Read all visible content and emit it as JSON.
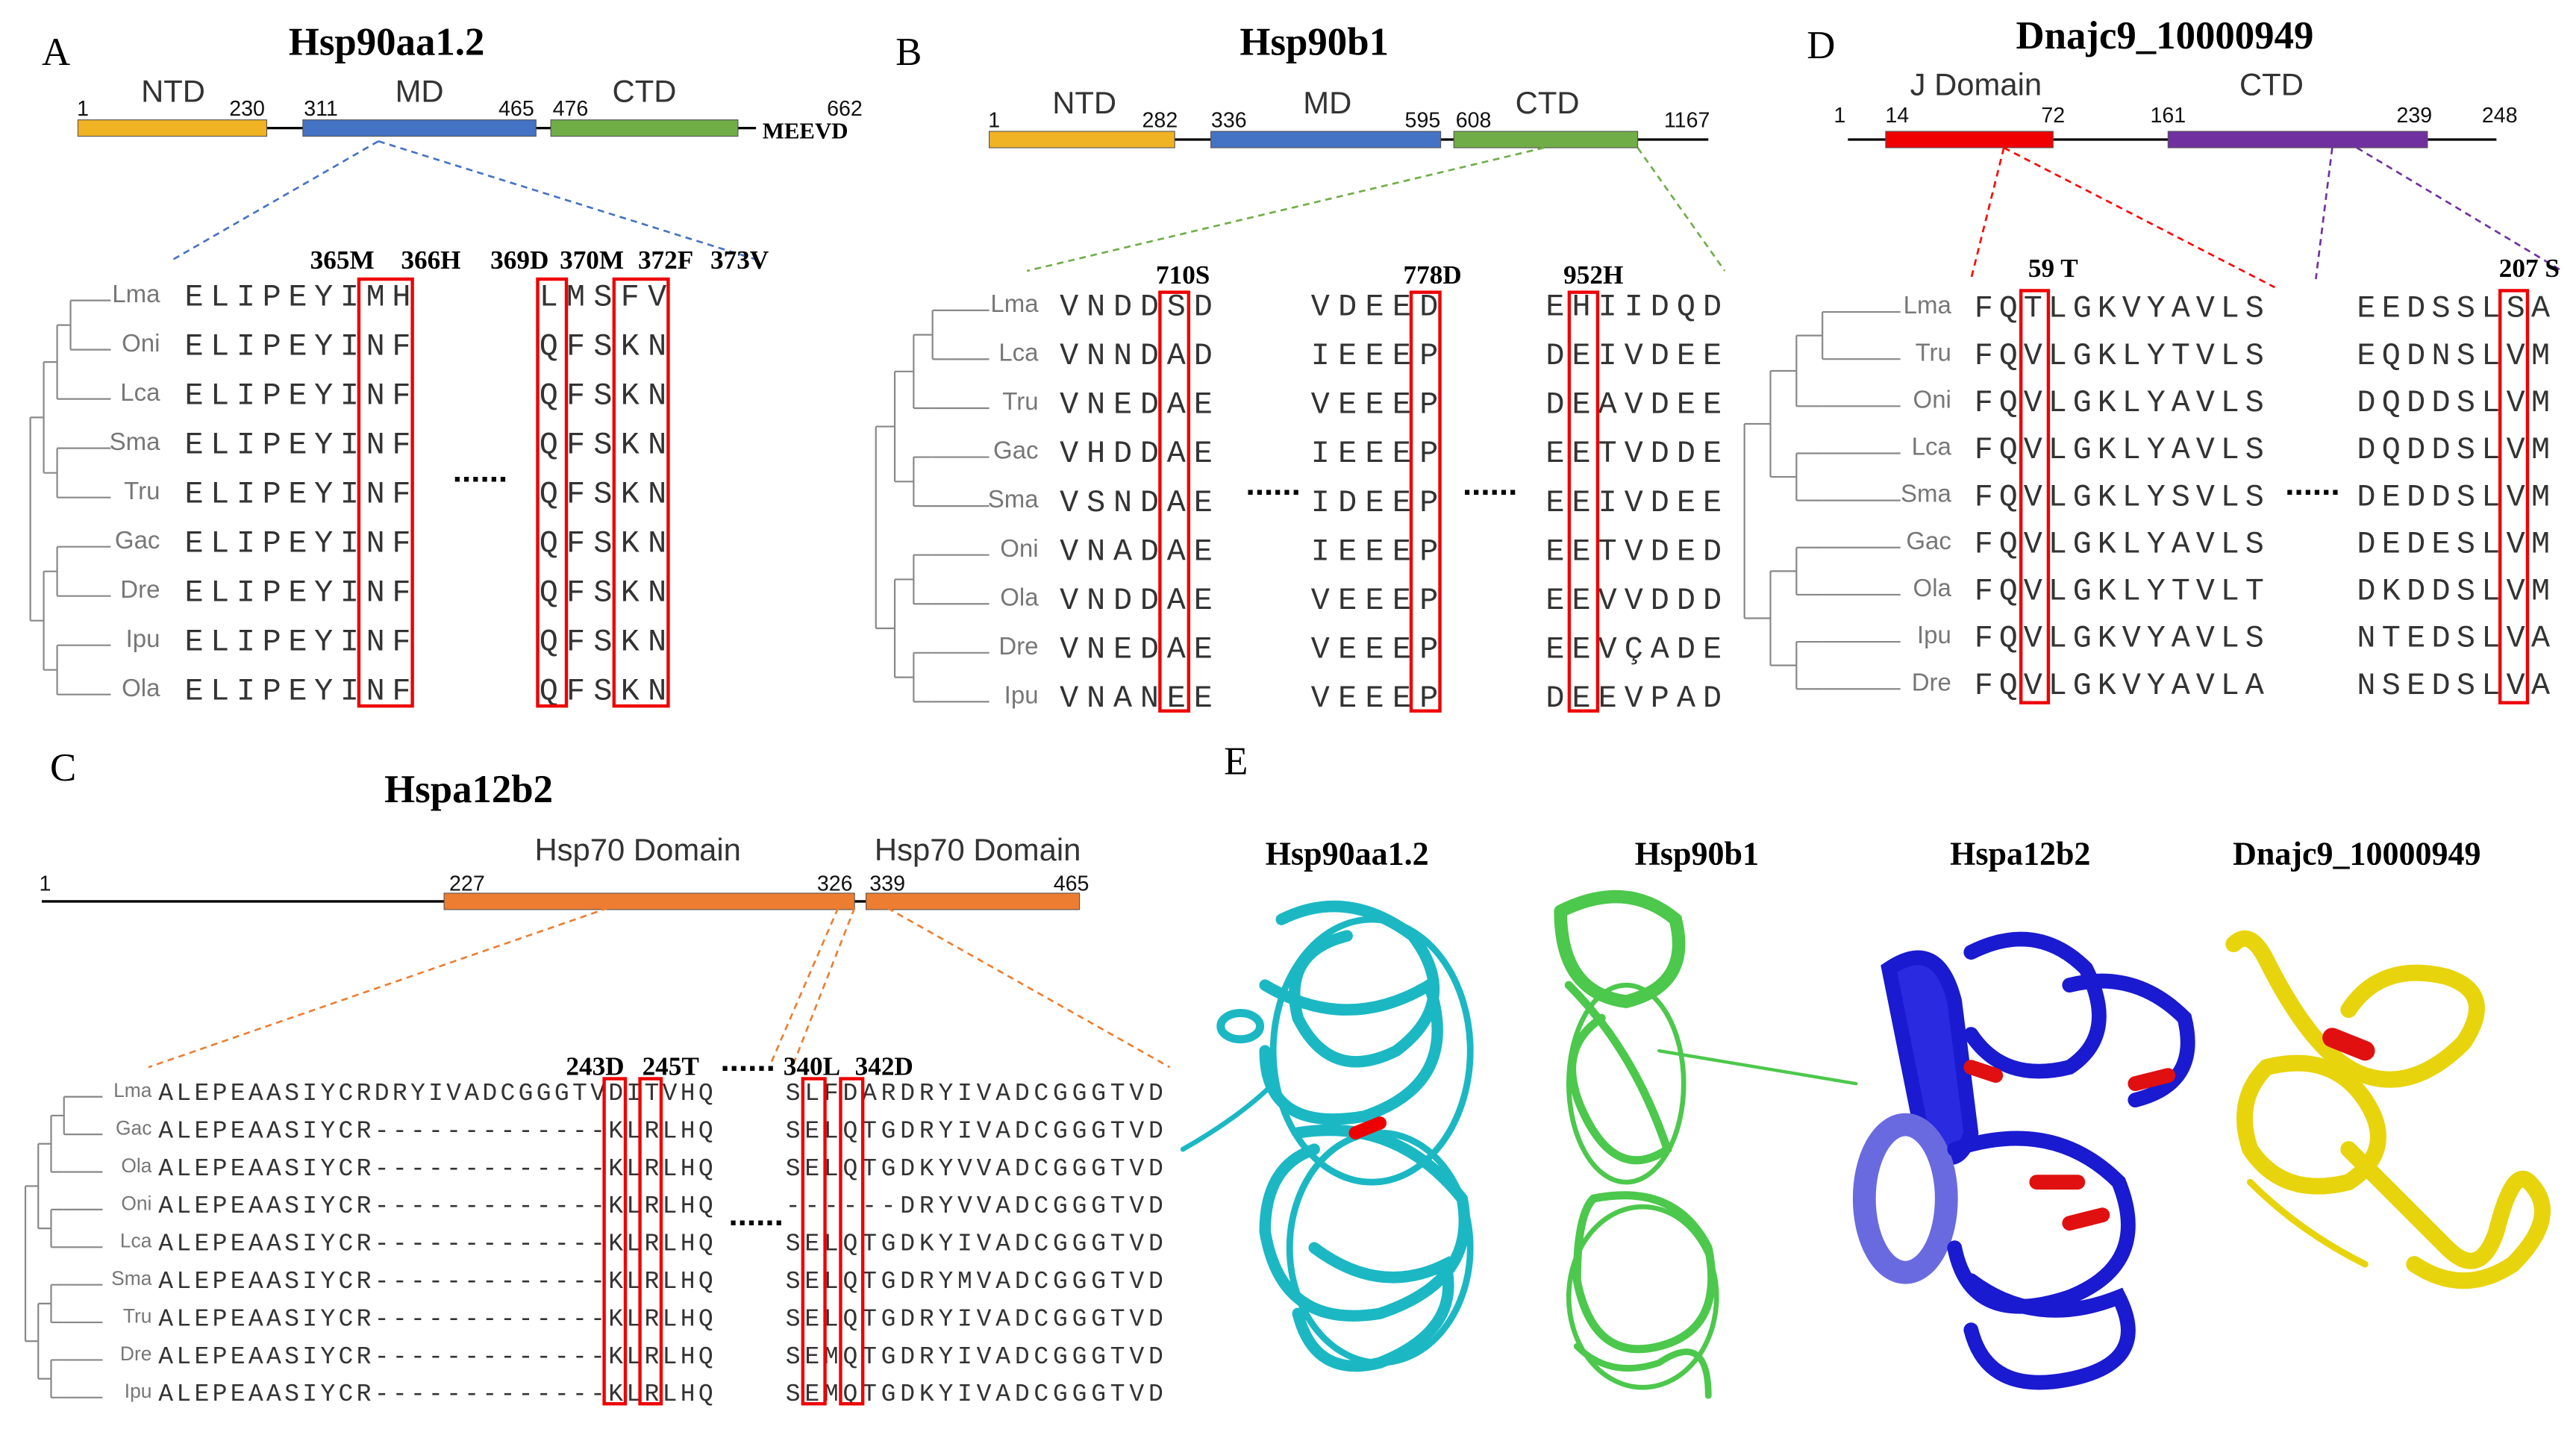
{
  "panels": [
    {
      "letter": "A",
      "title": "Hsp90aa1.2",
      "domains": [
        "NTD",
        "MD",
        "CTD"
      ],
      "positions": [
        1,
        230,
        311,
        465,
        476,
        662
      ],
      "tail": "MEEVD",
      "sites": [
        "365M",
        "366H",
        "369D",
        "370M",
        "372F",
        "373V"
      ],
      "separator": "......",
      "species": [
        "Lma",
        "Oni",
        "Lca",
        "Sma",
        "Tru",
        "Gac",
        "Dre",
        "Ipu",
        "Ola"
      ],
      "blocks": [
        [
          "ELIPEYIMH",
          "ELIPEYINF",
          "ELIPEYINF",
          "ELIPEYINF",
          "ELIPEYINF",
          "ELIPEYINF",
          "ELIPEYINF",
          "ELIPEYINF",
          "ELIPEYINF"
        ],
        [
          "LMSFV",
          "QFSKN",
          "QFSKN",
          "QFSKN",
          "QFSKN",
          "QFSKN",
          "QFSKN",
          "QFSKN",
          "QFSKN"
        ]
      ]
    },
    {
      "letter": "B",
      "title": "Hsp90b1",
      "domains": [
        "NTD",
        "MD",
        "CTD"
      ],
      "positions": [
        1,
        282,
        336,
        595,
        608,
        1167
      ],
      "sites": [
        "710S",
        "778D",
        "952H"
      ],
      "separator": "......",
      "species": [
        "Lma",
        "Lca",
        "Tru",
        "Gac",
        "Sma",
        "Oni",
        "Ola",
        "Dre",
        "Ipu"
      ],
      "blocks": [
        [
          "VNDDSD",
          "VNNDAD",
          "VNEDAE",
          "VHDDAE",
          "VSNDAE",
          "VNADAE",
          "VNDDAE",
          "VNEDAE",
          "VNANEE"
        ],
        [
          "VDEED",
          "IEEEP",
          "VEEEP",
          "IEEEP",
          "IDEEP",
          "IEEEP",
          "VEEEP",
          "VEEEP",
          "VEEEP"
        ],
        [
          "EHIIDQD",
          "DEIVDEE",
          "DEAVDEE",
          "EETVDDE",
          "EEIVDEE",
          "EETVDED",
          "EEVVDDD",
          "EEVÇADE",
          "DEEVPAD"
        ]
      ]
    },
    {
      "letter": "C",
      "title": "Hspa12b2",
      "domains": [
        "Hsp70 Domain",
        "Hsp70 Domain"
      ],
      "positions": [
        1,
        227,
        326,
        339,
        465
      ],
      "sites": [
        "243D",
        "245T",
        "340L",
        "342D"
      ],
      "separator": "......",
      "species": [
        "Lma",
        "Gac",
        "Ola",
        "Oni",
        "Lca",
        "Sma",
        "Tru",
        "Dre",
        "Ipu"
      ],
      "blocks": [
        [
          "ALEPEAASIYCRDRYIVADCGGGTVDITVHQ",
          "ALEPEAASIYCR-------------KLRLHQ",
          "ALEPEAASIYCR-------------KLRLHQ",
          "ALEPEAASIYCR-------------KLRLHQ",
          "ALEPEAASIYCR-------------KLRLHQ",
          "ALEPEAASIYCR-------------KLRLHQ",
          "ALEPEAASIYCR-------------KLRLHQ",
          "ALEPEAASIYCR-------------KLRLHQ",
          "ALEPEAASIYCR-------------KLRLHQ"
        ],
        [
          "SLFDARDRYIVADCGGGTVD",
          "SELQTGDRYIVADCGGGTVD",
          "SELQTGDKYVVADCGGGTVD",
          "------DRYVVADCGGGTVD",
          "SELQTGDKYIVADCGGGTVD",
          "SELQTGDRYMVADCGGGTVD",
          "SELQTGDRYIVADCGGGTVD",
          "SEMQTGDRYIVADCGGGTVD",
          "SEMQTGDKYIVADCGGGTVD"
        ]
      ]
    },
    {
      "letter": "D",
      "title": "Dnajc9_10000949",
      "domains": [
        "J Domain",
        "CTD"
      ],
      "positions": [
        1,
        14,
        72,
        161,
        239,
        248
      ],
      "sites": [
        "59 T",
        "207 S"
      ],
      "separator": "......",
      "species": [
        "Lma",
        "Tru",
        "Oni",
        "Lca",
        "Sma",
        "Gac",
        "Ola",
        "Ipu",
        "Dre"
      ],
      "blocks": [
        [
          "FQTLGKVYAVLS",
          "FQVLGKLYTVLS",
          "FQVLGKLYAVLS",
          "FQVLGKLYAVLS",
          "FQVLGKLYSVLS",
          "FQVLGKLYAVLS",
          "FQVLGKLYTVLT",
          "FQVLGKVYAVLS",
          "FQVLGKVYAVLA"
        ],
        [
          "EEDSSLSA",
          "EQDNSLVM",
          "DQDDSLVM",
          "DQDDSLVM",
          "DEDDSLVM",
          "DEDESLVM",
          "DKDDSLVM",
          "NTEDSLVA",
          "NSEDSLVA"
        ]
      ]
    },
    {
      "letter": "E",
      "structures": [
        "Hsp90aa1.2",
        "Hsp90b1",
        "Hspa12b2",
        "Dnajc9_10000949"
      ]
    }
  ]
}
